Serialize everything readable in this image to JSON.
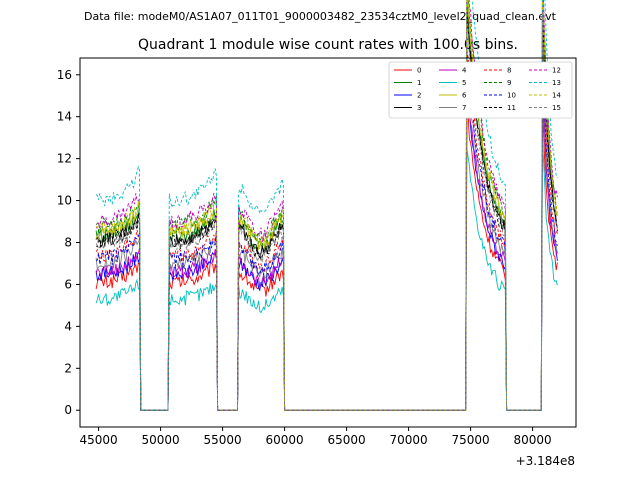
{
  "suptitle": "Data file: modeM0/AS1A07_011T01_9000003482_23534cztM0_level2_quad_clean.evt",
  "chart_data": {
    "type": "line",
    "title": "Quadrant 1 module wise count rates with 100.0s bins.",
    "xlabel": "",
    "ylabel": "",
    "x_offset_label": "+3.184e8",
    "xlim": [
      43500,
      83500
    ],
    "ylim": [
      -0.8,
      16.8
    ],
    "x_ticks": [
      45000,
      50000,
      55000,
      60000,
      65000,
      70000,
      75000,
      80000
    ],
    "x_tick_labels": [
      "45000",
      "50000",
      "55000",
      "60000",
      "65000",
      "70000",
      "75000",
      "80000"
    ],
    "y_ticks": [
      0,
      2,
      4,
      6,
      8,
      10,
      12,
      14,
      16
    ],
    "y_tick_labels": [
      "0",
      "2",
      "4",
      "6",
      "8",
      "10",
      "12",
      "14",
      "16"
    ],
    "grid": false,
    "legend_position": "top-right",
    "legend_columns": 4,
    "series": [
      {
        "name": "0",
        "color": "#ff0000",
        "style": "solid",
        "base_level": 6.1
      },
      {
        "name": "1",
        "color": "#008000",
        "style": "solid",
        "base_level": 8.3
      },
      {
        "name": "2",
        "color": "#0000ff",
        "style": "solid",
        "base_level": 6.5
      },
      {
        "name": "3",
        "color": "#000000",
        "style": "solid",
        "base_level": 8.1
      },
      {
        "name": "4",
        "color": "#bf00bf",
        "style": "solid",
        "base_level": 6.6
      },
      {
        "name": "5",
        "color": "#00bfbf",
        "style": "solid",
        "base_level": 5.3
      },
      {
        "name": "6",
        "color": "#bfbf00",
        "style": "solid",
        "base_level": 8.5
      },
      {
        "name": "7",
        "color": "#808080",
        "style": "solid",
        "base_level": 7.0
      },
      {
        "name": "8",
        "color": "#ff0000",
        "style": "dashed",
        "base_level": 7.4
      },
      {
        "name": "9",
        "color": "#008000",
        "style": "dashed",
        "base_level": 8.8
      },
      {
        "name": "10",
        "color": "#0000ff",
        "style": "dashed",
        "base_level": 7.2
      },
      {
        "name": "11",
        "color": "#000000",
        "style": "dashed",
        "base_level": 8.0
      },
      {
        "name": "12",
        "color": "#bf00bf",
        "style": "dashed",
        "base_level": 9.0
      },
      {
        "name": "13",
        "color": "#00bfbf",
        "style": "dashed",
        "base_level": 10.0
      },
      {
        "name": "14",
        "color": "#bfbf00",
        "style": "dashed",
        "base_level": 8.6
      },
      {
        "name": "15",
        "color": "#808080",
        "style": "dashed",
        "base_level": 7.9
      }
    ],
    "active_segments": [
      {
        "x_start": 44800,
        "x_end": 48300,
        "shape": "rise"
      },
      {
        "x_start": 50700,
        "x_end": 54500,
        "shape": "rise"
      },
      {
        "x_start": 56300,
        "x_end": 59900,
        "shape": "dip"
      },
      {
        "x_start": 74700,
        "x_end": 77800,
        "shape": "flare"
      },
      {
        "x_start": 80800,
        "x_end": 82000,
        "shape": "flare"
      }
    ],
    "gap_value": 0
  }
}
